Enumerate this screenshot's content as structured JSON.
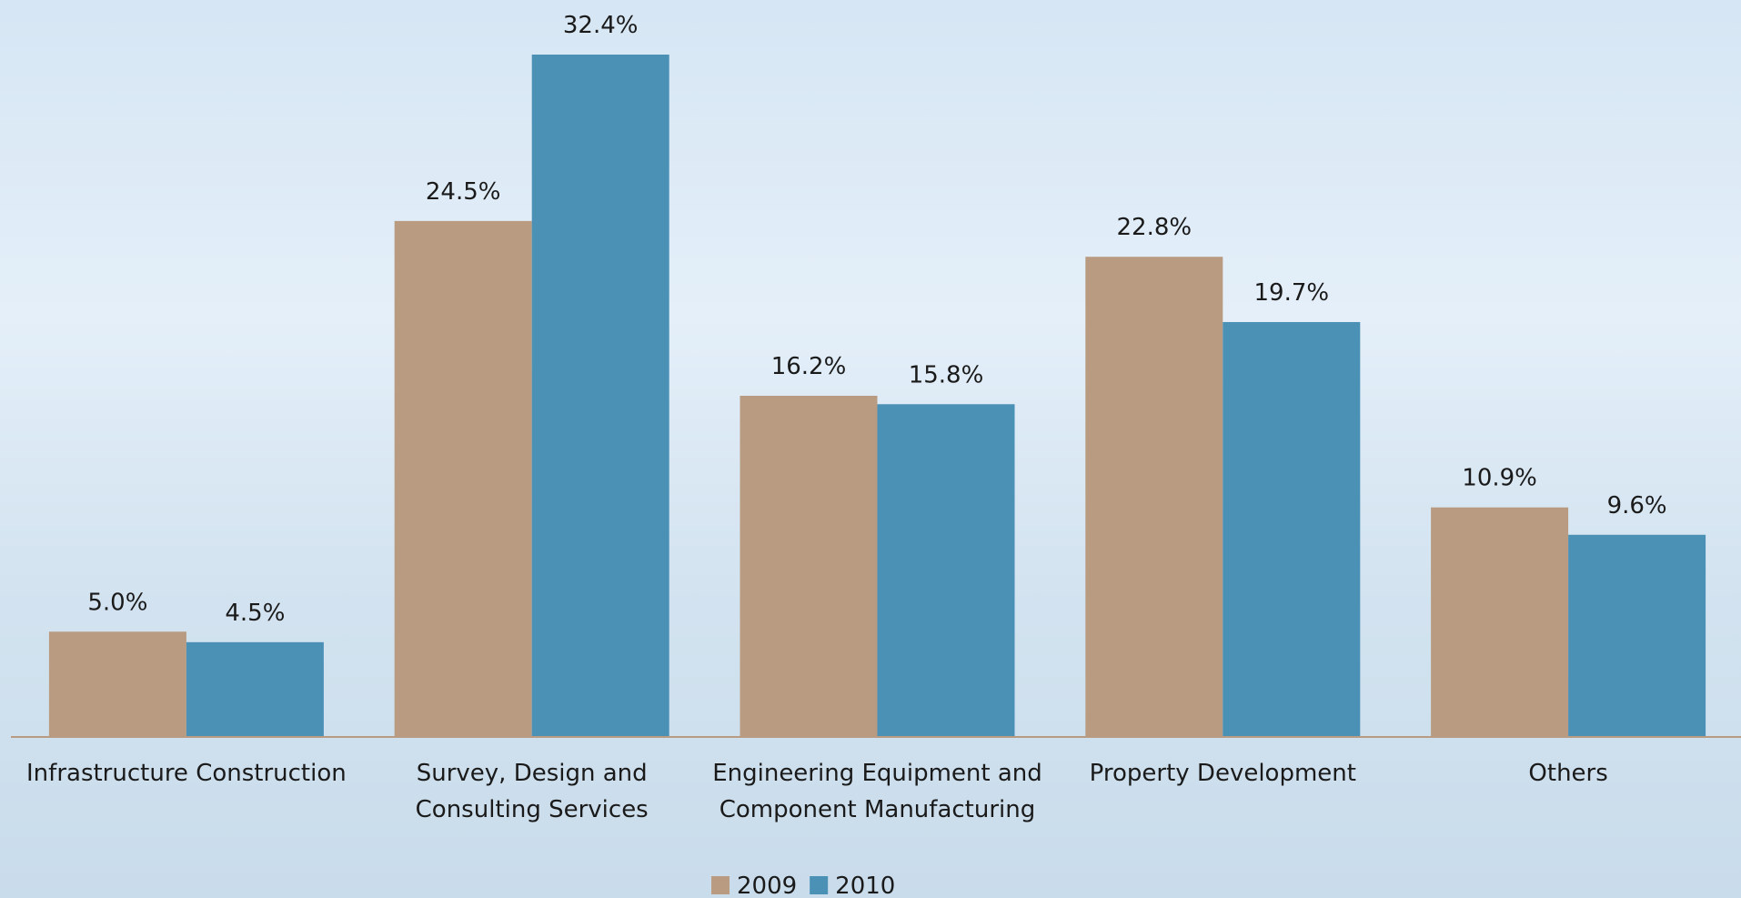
{
  "chart_data": {
    "type": "bar",
    "categories": [
      "Infrastructure Construction",
      "Survey, Design and Consulting Services",
      "Engineering Equipment and Component Manufacturing",
      "Property Development",
      "Others"
    ],
    "series": [
      {
        "name": "2009",
        "color": "#b89b80",
        "values": [
          5.0,
          24.5,
          16.2,
          22.8,
          10.9
        ],
        "value_labels": [
          "5.0%",
          "24.5%",
          "16.2%",
          "22.8%",
          "10.9%"
        ]
      },
      {
        "name": "2010",
        "color": "#4b91b6",
        "values": [
          4.5,
          32.4,
          15.8,
          19.7,
          9.6
        ],
        "value_labels": [
          "4.5%",
          "32.4%",
          "15.8%",
          "19.7%",
          "9.6%"
        ]
      }
    ],
    "legend": "bottom"
  }
}
